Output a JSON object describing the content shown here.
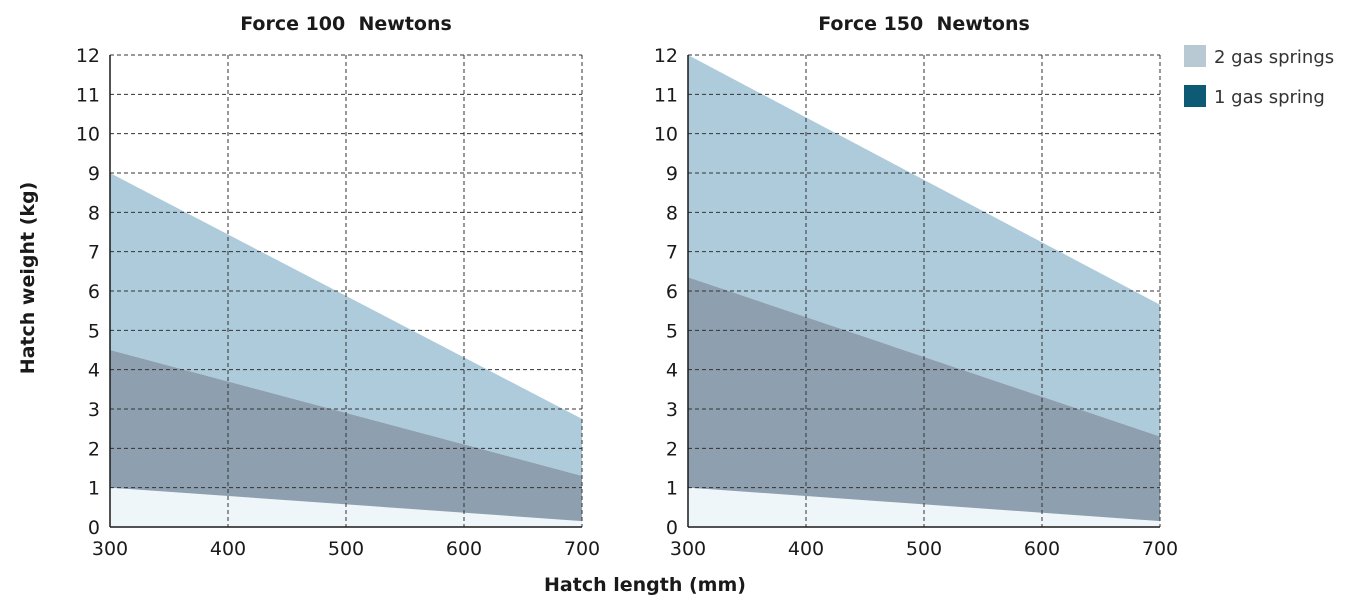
{
  "shared_labels": {
    "ylabel": "Hatch weight (kg)",
    "xlabel": "Hatch length (mm)"
  },
  "legend": {
    "items": [
      {
        "label": "2 gas springs",
        "color": "#b9c9d4"
      },
      {
        "label": "1 gas spring",
        "color": "#0d5a75"
      }
    ]
  },
  "colors": {
    "band_two_springs": "#aecbdb",
    "band_one_spring": "#8ea0b0",
    "band_minimum": "#eef6f9",
    "grid": "#333333"
  },
  "chart_data": [
    {
      "type": "area",
      "title": "Force 100  Newtons",
      "xlim": [
        300,
        700
      ],
      "ylim": [
        0,
        12
      ],
      "x_ticks": [
        300,
        400,
        500,
        600,
        700
      ],
      "y_ticks": [
        0,
        1,
        2,
        3,
        4,
        5,
        6,
        7,
        8,
        9,
        10,
        11,
        12
      ],
      "grid": true,
      "x": [
        300,
        700
      ],
      "series": [
        {
          "name": "2 gas springs",
          "upper": [
            9.0,
            2.75
          ],
          "lower": [
            4.5,
            1.3
          ]
        },
        {
          "name": "1 gas spring",
          "upper": [
            4.5,
            1.3
          ],
          "lower": [
            1.0,
            0.15
          ]
        }
      ]
    },
    {
      "type": "area",
      "title": "Force 150  Newtons",
      "xlim": [
        300,
        700
      ],
      "ylim": [
        0,
        12
      ],
      "x_ticks": [
        300,
        400,
        500,
        600,
        700
      ],
      "y_ticks": [
        0,
        1,
        2,
        3,
        4,
        5,
        6,
        7,
        8,
        9,
        10,
        11,
        12
      ],
      "grid": true,
      "x": [
        300,
        700
      ],
      "series": [
        {
          "name": "2 gas springs",
          "upper": [
            12.0,
            5.65
          ],
          "lower": [
            6.35,
            2.3
          ]
        },
        {
          "name": "1 gas spring",
          "upper": [
            6.35,
            2.3
          ],
          "lower": [
            1.0,
            0.15
          ]
        }
      ]
    }
  ]
}
